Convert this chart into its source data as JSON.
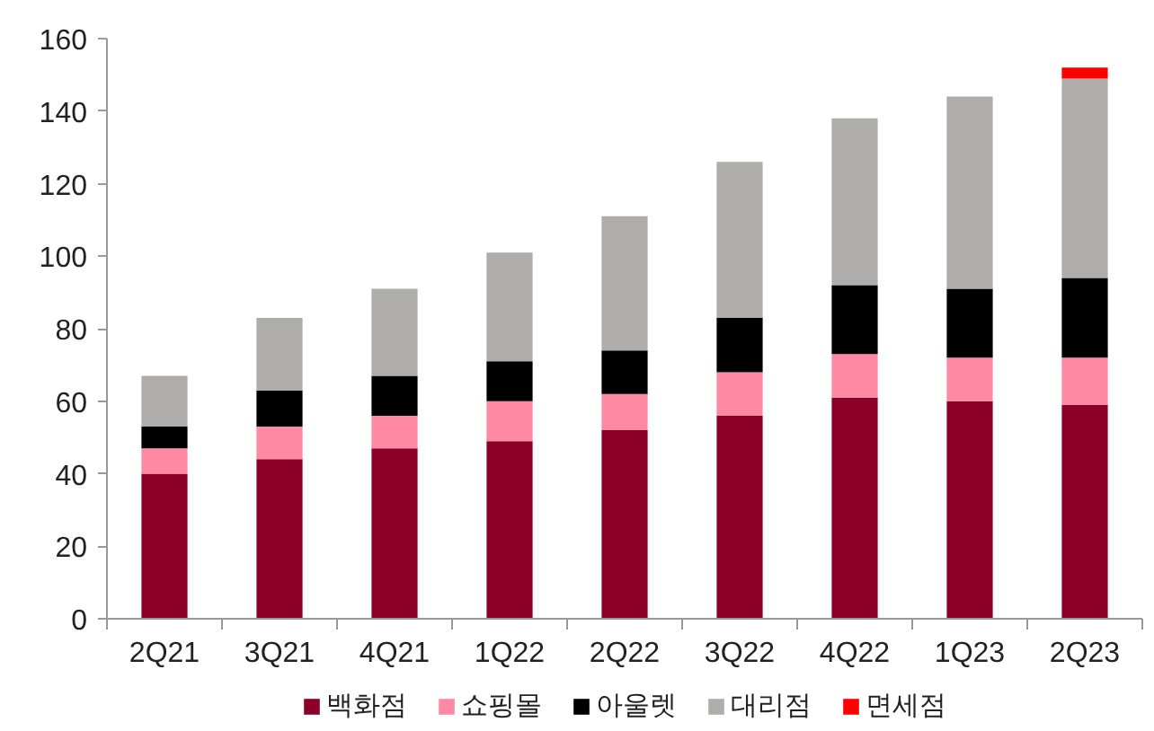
{
  "chart_data": {
    "type": "bar",
    "stacked": true,
    "categories": [
      "2Q21",
      "3Q21",
      "4Q21",
      "1Q22",
      "2Q22",
      "3Q22",
      "4Q22",
      "1Q23",
      "2Q23"
    ],
    "series": [
      {
        "name": "백화점",
        "color": "#8c0028",
        "values": [
          40,
          44,
          47,
          49,
          52,
          56,
          61,
          60,
          59
        ]
      },
      {
        "name": "쇼핑몰",
        "color": "#ff88a2",
        "values": [
          7,
          9,
          9,
          11,
          10,
          12,
          12,
          12,
          13
        ]
      },
      {
        "name": "아울렛",
        "color": "#000000",
        "values": [
          6,
          10,
          11,
          11,
          12,
          15,
          19,
          19,
          22
        ]
      },
      {
        "name": "대리점",
        "color": "#aeadab",
        "values": [
          14,
          20,
          24,
          30,
          37,
          43,
          46,
          53,
          55
        ]
      },
      {
        "name": "면세점",
        "color": "#ff0000",
        "values": [
          null,
          null,
          null,
          null,
          null,
          null,
          null,
          null,
          3
        ]
      }
    ],
    "ylim": [
      0,
      160
    ],
    "yticks": [
      0,
      20,
      40,
      60,
      80,
      100,
      120,
      140,
      160
    ],
    "legend": "bottom",
    "grid": false
  }
}
